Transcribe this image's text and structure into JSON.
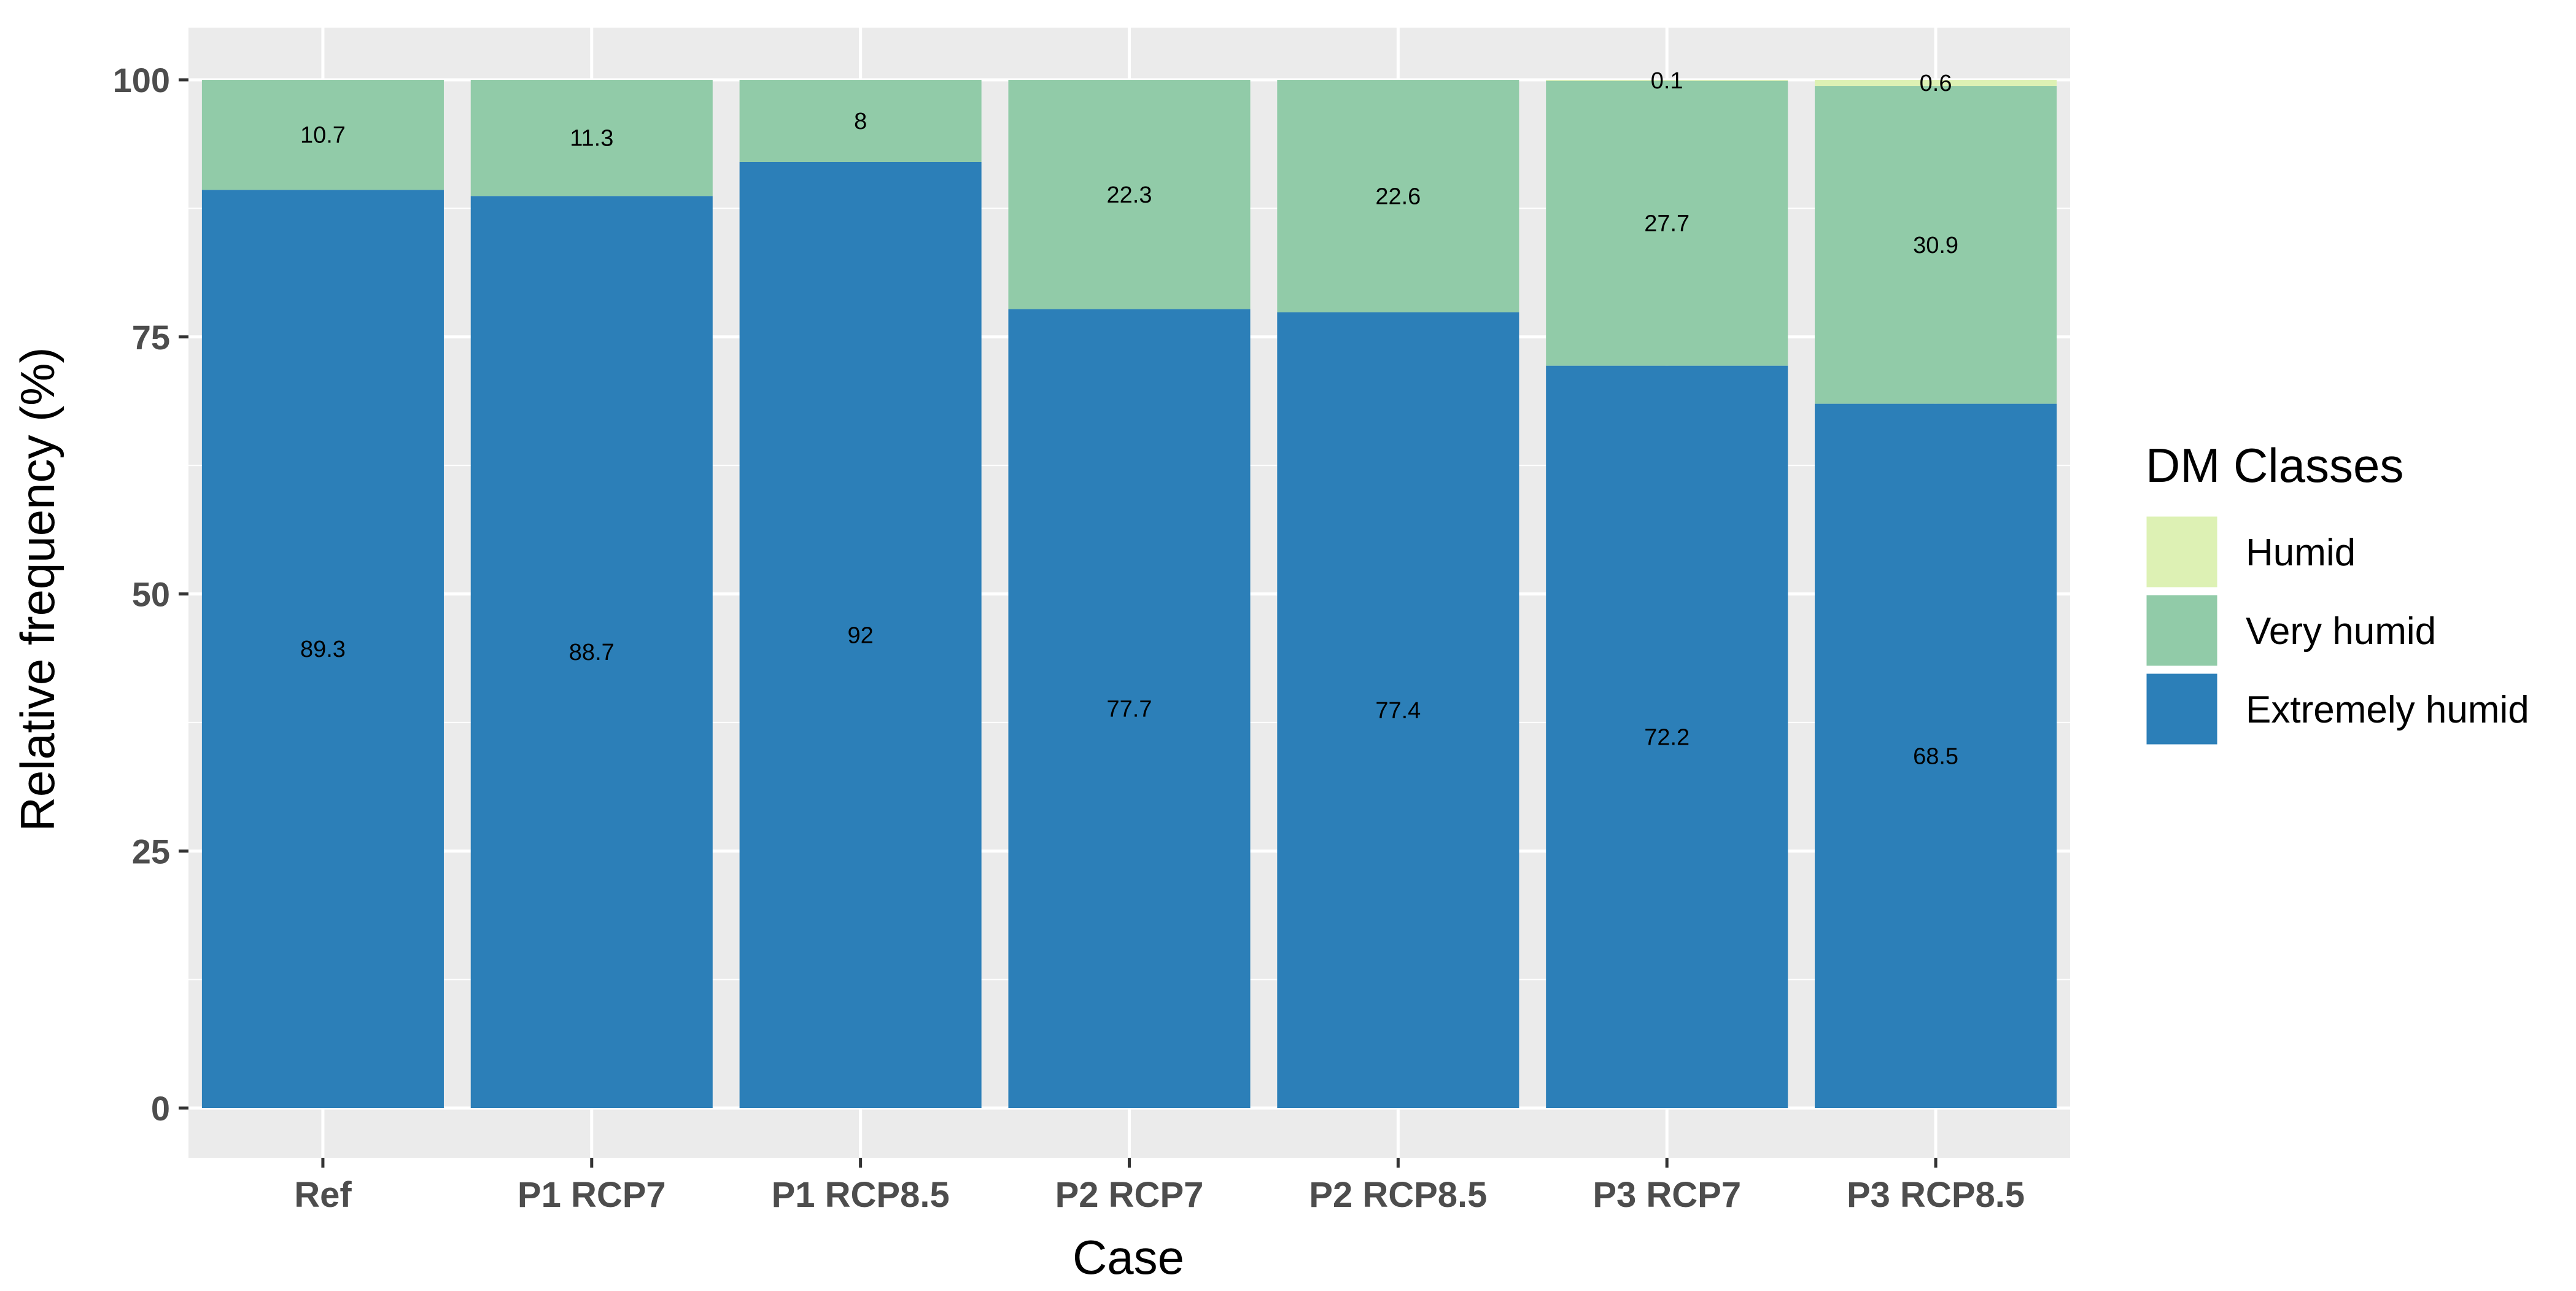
{
  "chart_data": {
    "type": "bar",
    "stacked": true,
    "categories": [
      "Ref",
      "P1 RCP7",
      "P1 RCP8.5",
      "P2 RCP7",
      "P2 RCP8.5",
      "P3 RCP7",
      "P3 RCP8.5"
    ],
    "series": [
      {
        "name": "Extremely humid",
        "color": "#2c7fb8",
        "values": [
          89.3,
          88.7,
          92,
          77.7,
          77.4,
          72.2,
          68.5
        ],
        "labels": [
          "89.3",
          "88.7",
          "92",
          "77.7",
          "77.4",
          "72.2",
          "68.5"
        ]
      },
      {
        "name": "Very humid",
        "color": "#91cba8",
        "values": [
          10.7,
          11.3,
          8,
          22.3,
          22.6,
          27.7,
          30.9
        ],
        "labels": [
          "10.7",
          "11.3",
          "8",
          "22.3",
          "22.6",
          "27.7",
          "30.9"
        ]
      },
      {
        "name": "Humid",
        "color": "#ddf1b4",
        "values": [
          0,
          0,
          0,
          0,
          0,
          0.1,
          0.6
        ],
        "labels": [
          "",
          "",
          "",
          "",
          "",
          "0.1",
          "0.6"
        ]
      }
    ],
    "xlabel": "Case",
    "ylabel": "Relative frequency (%)",
    "ylim": [
      0,
      100
    ],
    "yticks": [
      0,
      25,
      50,
      75,
      100
    ],
    "grid": true,
    "legend": {
      "title": "DM Classes",
      "position": "right",
      "order": [
        "Humid",
        "Very humid",
        "Extremely humid"
      ]
    },
    "panel_background": "#ebebeb",
    "grid_color": "#ffffff"
  }
}
